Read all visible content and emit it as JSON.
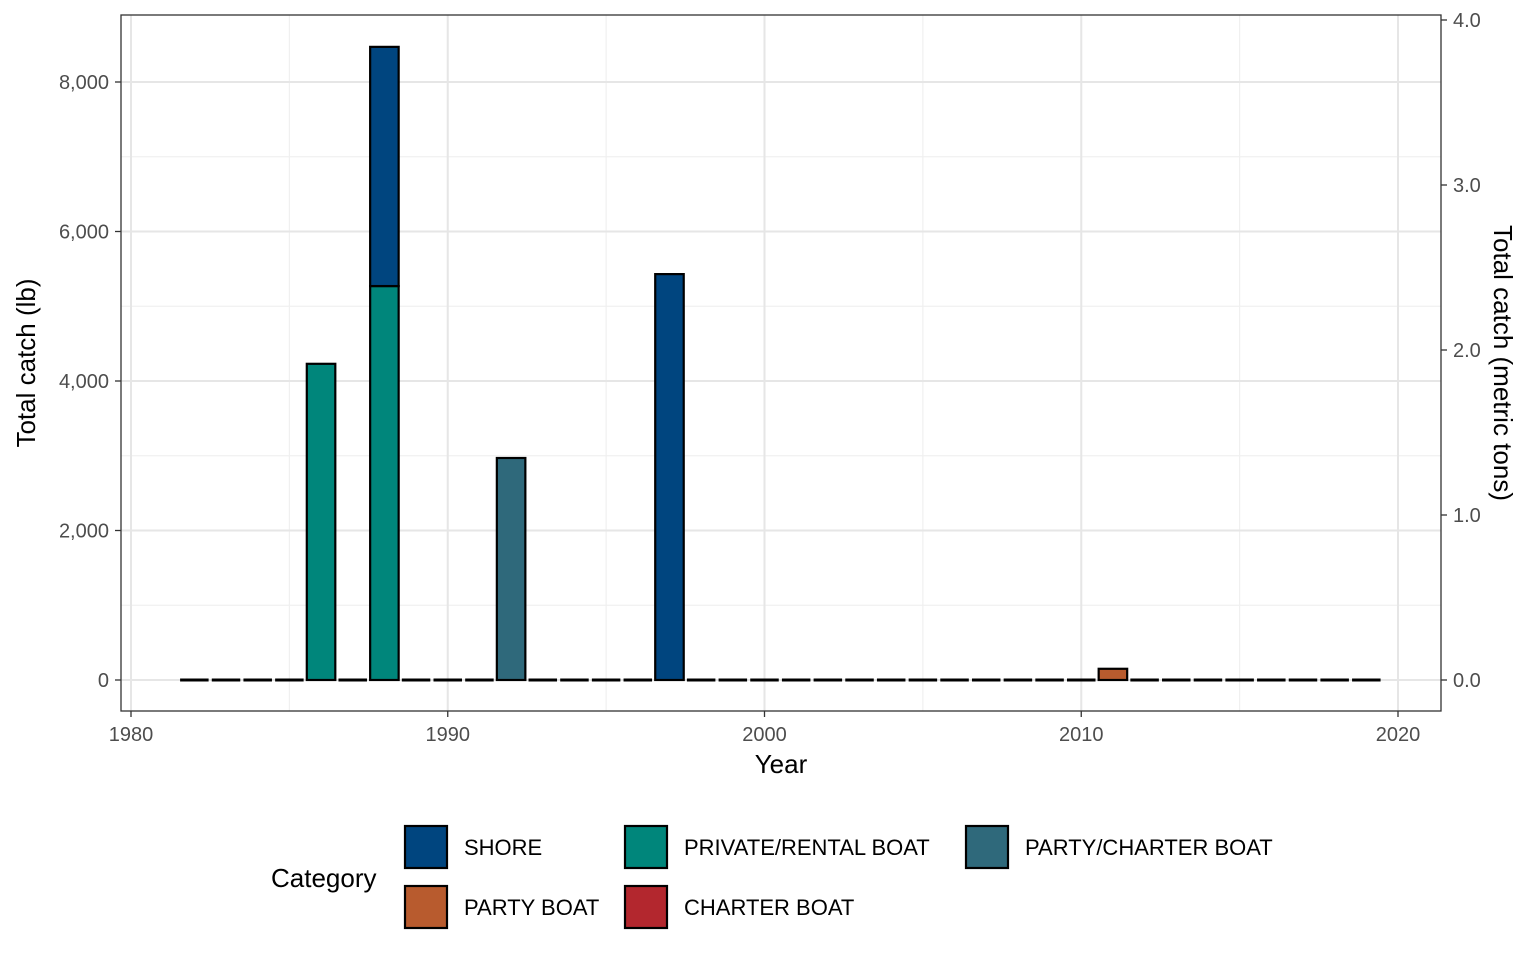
{
  "chart_data": {
    "type": "bar",
    "stacked": true,
    "xlabel": "Year",
    "ylabel": "Total catch (lb)",
    "y2label": "Total catch (metric tons)",
    "xlim": [
      1980,
      2020
    ],
    "ylim": [
      0,
      8500
    ],
    "y2lim": [
      0,
      4.0
    ],
    "x_ticks": [
      "1980",
      "1990",
      "2000",
      "2010",
      "2020"
    ],
    "x_tick_values": [
      1980,
      1990,
      2000,
      2010,
      2020
    ],
    "y_ticks": [
      "0",
      "2,000",
      "4,000",
      "6,000",
      "8,000"
    ],
    "y_tick_values": [
      0,
      2000,
      4000,
      6000,
      8000
    ],
    "y2_ticks": [
      "0.0",
      "1.0",
      "2.0",
      "3.0",
      "4.0"
    ],
    "y2_tick_values": [
      0,
      1,
      2,
      3,
      4
    ],
    "grid": true,
    "legend_title": "Category",
    "legend_position": "bottom",
    "years": [
      1982,
      1983,
      1984,
      1985,
      1986,
      1987,
      1988,
      1989,
      1990,
      1991,
      1992,
      1993,
      1994,
      1995,
      1996,
      1997,
      1998,
      1999,
      2000,
      2001,
      2002,
      2003,
      2004,
      2005,
      2006,
      2007,
      2008,
      2009,
      2010,
      2011,
      2012,
      2013,
      2014,
      2015,
      2016,
      2017,
      2018,
      2019
    ],
    "series": [
      {
        "name": "SHORE",
        "color": "#00457f",
        "values": [
          0,
          0,
          0,
          0,
          0,
          0,
          3200,
          0,
          0,
          0,
          0,
          0,
          0,
          0,
          0,
          5430,
          0,
          0,
          0,
          0,
          0,
          0,
          0,
          0,
          0,
          0,
          0,
          0,
          0,
          0,
          0,
          0,
          0,
          0,
          0,
          0,
          0,
          0
        ]
      },
      {
        "name": "PRIVATE/RENTAL BOAT",
        "color": "#00867b",
        "values": [
          0,
          0,
          0,
          0,
          4230,
          0,
          5270,
          0,
          0,
          0,
          0,
          0,
          0,
          0,
          0,
          0,
          0,
          0,
          0,
          0,
          0,
          0,
          0,
          0,
          0,
          0,
          0,
          0,
          0,
          0,
          0,
          0,
          0,
          0,
          0,
          0,
          0,
          0
        ]
      },
      {
        "name": "PARTY/CHARTER BOAT",
        "color": "#2f697b",
        "values": [
          0,
          0,
          0,
          0,
          0,
          0,
          0,
          0,
          0,
          0,
          2970,
          0,
          0,
          0,
          0,
          0,
          0,
          0,
          0,
          0,
          0,
          0,
          0,
          0,
          0,
          0,
          0,
          0,
          0,
          0,
          0,
          0,
          0,
          0,
          0,
          0,
          0,
          0
        ]
      },
      {
        "name": "PARTY BOAT",
        "color": "#b85b2e",
        "values": [
          0,
          0,
          0,
          0,
          0,
          0,
          0,
          0,
          0,
          0,
          0,
          0,
          0,
          0,
          0,
          0,
          0,
          0,
          0,
          0,
          0,
          0,
          0,
          0,
          0,
          0,
          0,
          0,
          0,
          150,
          0,
          0,
          0,
          0,
          0,
          0,
          0,
          0
        ]
      },
      {
        "name": "CHARTER BOAT",
        "color": "#b3272e",
        "values": [
          0,
          0,
          0,
          0,
          0,
          0,
          0,
          0,
          0,
          0,
          0,
          0,
          0,
          0,
          0,
          0,
          0,
          0,
          0,
          0,
          0,
          0,
          0,
          0,
          0,
          0,
          0,
          0,
          0,
          0,
          0,
          0,
          0,
          0,
          0,
          0,
          0,
          0
        ]
      }
    ]
  }
}
